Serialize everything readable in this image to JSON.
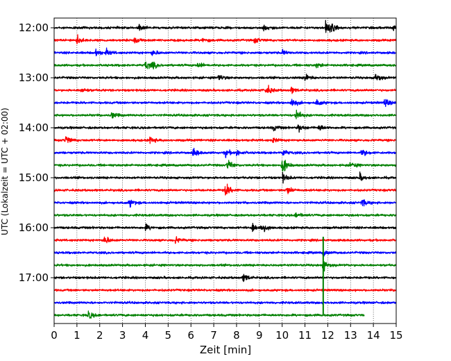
{
  "chart_data": {
    "type": "line",
    "title": "",
    "xlabel": "Zeit  [min]",
    "ylabel": "UTC (Lokalzeit = UTC + 02:00)",
    "xlim": [
      0,
      15
    ],
    "x_ticks": [
      "0",
      "1",
      "2",
      "3",
      "4",
      "5",
      "6",
      "7",
      "8",
      "9",
      "10",
      "11",
      "12",
      "13",
      "14",
      "15"
    ],
    "y_tick_labels": [
      "12:00",
      "13:00",
      "14:00",
      "15:00",
      "16:00",
      "17:00"
    ],
    "grid": "vertical dotted lines at each minute",
    "line_interval_minutes": 15,
    "trace_colors": [
      "#000000",
      "#ff0000",
      "#0000ff",
      "#008000"
    ],
    "traces": [
      {
        "start": "12:00",
        "color": "#000000",
        "end_minute": 15,
        "events": [
          {
            "t": 3.7,
            "a": 7
          },
          {
            "t": 9.2,
            "a": 6
          },
          {
            "t": 11.9,
            "a": 11
          },
          {
            "t": 12.1,
            "a": 9
          },
          {
            "t": 14.9,
            "a": 8
          }
        ]
      },
      {
        "start": "12:15",
        "color": "#ff0000",
        "end_minute": 15,
        "events": [
          {
            "t": 1.0,
            "a": 9
          },
          {
            "t": 3.5,
            "a": 7
          },
          {
            "t": 6.5,
            "a": 5
          },
          {
            "t": 8.8,
            "a": 6
          }
        ]
      },
      {
        "start": "12:30",
        "color": "#0000ff",
        "end_minute": 15,
        "events": [
          {
            "t": 1.8,
            "a": 8
          },
          {
            "t": 2.3,
            "a": 6
          },
          {
            "t": 4.3,
            "a": 6
          },
          {
            "t": 10.0,
            "a": 5
          }
        ]
      },
      {
        "start": "12:45",
        "color": "#008000",
        "end_minute": 15,
        "events": [
          {
            "t": 4.0,
            "a": 9
          },
          {
            "t": 4.3,
            "a": 6
          },
          {
            "t": 6.3,
            "a": 6
          },
          {
            "t": 11.5,
            "a": 5
          }
        ]
      },
      {
        "start": "13:00",
        "color": "#000000",
        "end_minute": 15,
        "events": [
          {
            "t": 7.2,
            "a": 7
          },
          {
            "t": 11.0,
            "a": 9
          },
          {
            "t": 14.1,
            "a": 10
          }
        ]
      },
      {
        "start": "13:15",
        "color": "#ff0000",
        "end_minute": 15,
        "events": [
          {
            "t": 1.2,
            "a": 6
          },
          {
            "t": 9.3,
            "a": 11
          },
          {
            "t": 10.4,
            "a": 6
          }
        ]
      },
      {
        "start": "13:30",
        "color": "#0000ff",
        "end_minute": 15,
        "events": [
          {
            "t": 10.4,
            "a": 10
          },
          {
            "t": 11.5,
            "a": 7
          },
          {
            "t": 14.5,
            "a": 9
          }
        ]
      },
      {
        "start": "13:45",
        "color": "#008000",
        "end_minute": 15,
        "events": [
          {
            "t": 2.5,
            "a": 7
          },
          {
            "t": 10.6,
            "a": 12
          }
        ]
      },
      {
        "start": "14:00",
        "color": "#000000",
        "end_minute": 15,
        "events": [
          {
            "t": 9.6,
            "a": 6
          },
          {
            "t": 10.7,
            "a": 8
          },
          {
            "t": 11.6,
            "a": 7
          }
        ]
      },
      {
        "start": "14:15",
        "color": "#ff0000",
        "end_minute": 15,
        "events": [
          {
            "t": 0.5,
            "a": 9
          },
          {
            "t": 4.2,
            "a": 7
          },
          {
            "t": 9.6,
            "a": 5
          }
        ]
      },
      {
        "start": "14:30",
        "color": "#0000ff",
        "end_minute": 15,
        "events": [
          {
            "t": 6.1,
            "a": 9
          },
          {
            "t": 7.5,
            "a": 8
          },
          {
            "t": 8.0,
            "a": 6
          },
          {
            "t": 10.0,
            "a": 8
          },
          {
            "t": 13.5,
            "a": 8
          }
        ]
      },
      {
        "start": "14:45",
        "color": "#008000",
        "end_minute": 15,
        "events": [
          {
            "t": 7.6,
            "a": 12
          },
          {
            "t": 10.0,
            "a": 18
          },
          {
            "t": 13.0,
            "a": 7
          }
        ]
      },
      {
        "start": "15:00",
        "color": "#000000",
        "end_minute": 15,
        "events": [
          {
            "t": 10.0,
            "a": 9
          },
          {
            "t": 13.4,
            "a": 7
          }
        ]
      },
      {
        "start": "15:15",
        "color": "#ff0000",
        "end_minute": 15,
        "events": [
          {
            "t": 7.5,
            "a": 15
          },
          {
            "t": 10.2,
            "a": 9
          }
        ]
      },
      {
        "start": "15:30",
        "color": "#0000ff",
        "end_minute": 15,
        "events": [
          {
            "t": 3.3,
            "a": 8
          },
          {
            "t": 13.5,
            "a": 8
          }
        ]
      },
      {
        "start": "15:45",
        "color": "#008000",
        "end_minute": 15,
        "events": [
          {
            "t": 10.6,
            "a": 6
          }
        ]
      },
      {
        "start": "16:00",
        "color": "#000000",
        "end_minute": 15,
        "events": [
          {
            "t": 4.0,
            "a": 6
          },
          {
            "t": 8.7,
            "a": 10
          },
          {
            "t": 9.1,
            "a": 11
          }
        ]
      },
      {
        "start": "16:15",
        "color": "#ff0000",
        "end_minute": 15,
        "events": [
          {
            "t": 2.2,
            "a": 9
          },
          {
            "t": 5.3,
            "a": 7
          }
        ]
      },
      {
        "start": "16:30",
        "color": "#0000ff",
        "end_minute": 15,
        "events": [
          {
            "t": 11.8,
            "a": 6
          }
        ]
      },
      {
        "start": "16:45",
        "color": "#008000",
        "end_minute": 15,
        "events": [
          {
            "t": 11.8,
            "a": 11
          }
        ]
      },
      {
        "start": "17:00",
        "color": "#000000",
        "end_minute": 15,
        "events": [
          {
            "t": 8.3,
            "a": 9
          }
        ]
      },
      {
        "start": "17:15",
        "color": "#ff0000",
        "end_minute": 15,
        "events": []
      },
      {
        "start": "17:30",
        "color": "#0000ff",
        "end_minute": 15,
        "events": []
      },
      {
        "start": "17:45",
        "color": "#008000",
        "end_minute": 13.6,
        "events": [
          {
            "t": 1.5,
            "a": 8
          }
        ]
      }
    ],
    "large_spike": {
      "t": 11.8,
      "from_trace": "16:15",
      "to_trace": "17:45",
      "color": "#008000"
    }
  }
}
